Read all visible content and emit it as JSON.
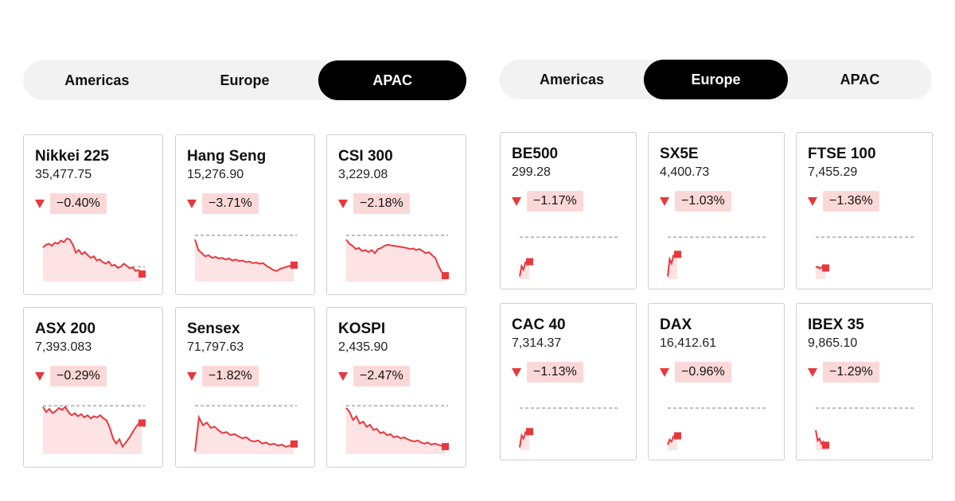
{
  "colors": {
    "down": "#e8383d",
    "badge": "#fbd8d8",
    "active_tab": "#000000",
    "tab_bg": "#f2f2f2"
  },
  "left": {
    "tabs": [
      {
        "label": "Americas",
        "active": false
      },
      {
        "label": "Europe",
        "active": false
      },
      {
        "label": "APAC",
        "active": true
      }
    ],
    "cards": [
      {
        "name": "Nikkei 225",
        "value": "35,477.75",
        "change": "−0.40%",
        "direction": "down",
        "icon": "down-triangle-icon",
        "spark": {
          "ref": 0.72,
          "points": [
            0.35,
            0.3,
            0.28,
            0.32,
            0.26,
            0.28,
            0.22,
            0.25,
            0.18,
            0.2,
            0.3,
            0.45,
            0.4,
            0.48,
            0.44,
            0.5,
            0.55,
            0.52,
            0.6,
            0.58,
            0.63,
            0.66,
            0.62,
            0.7,
            0.68,
            0.74,
            0.72,
            0.66,
            0.7,
            0.75,
            0.73,
            0.8,
            0.78,
            0.85
          ]
        }
      },
      {
        "name": "Hang Seng",
        "value": "15,276.90",
        "change": "−3.71%",
        "direction": "down",
        "icon": "down-triangle-icon",
        "spark": {
          "ref": 0.12,
          "points": [
            0.2,
            0.4,
            0.46,
            0.52,
            0.5,
            0.55,
            0.53,
            0.56,
            0.55,
            0.58,
            0.56,
            0.6,
            0.58,
            0.61,
            0.6,
            0.63,
            0.62,
            0.65,
            0.64,
            0.66,
            0.65,
            0.7,
            0.74,
            0.78,
            0.8,
            0.76,
            0.74,
            0.72,
            0.7,
            0.68
          ]
        }
      },
      {
        "name": "CSI 300",
        "value": "3,229.08",
        "change": "−2.18%",
        "direction": "down",
        "icon": "down-triangle-icon",
        "spark": {
          "ref": 0.12,
          "points": [
            0.2,
            0.28,
            0.32,
            0.38,
            0.36,
            0.42,
            0.4,
            0.44,
            0.4,
            0.46,
            0.38,
            0.36,
            0.32,
            0.3,
            0.31,
            0.32,
            0.33,
            0.34,
            0.35,
            0.36,
            0.38,
            0.37,
            0.4,
            0.38,
            0.42,
            0.46,
            0.44,
            0.5,
            0.55,
            0.7,
            0.82,
            0.88
          ]
        }
      },
      {
        "name": "ASX 200",
        "value": "7,393.083",
        "change": "−0.29%",
        "direction": "down",
        "icon": "down-triangle-icon",
        "spark": {
          "ref": 0.08,
          "points": [
            0.1,
            0.2,
            0.14,
            0.22,
            0.18,
            0.12,
            0.16,
            0.1,
            0.2,
            0.26,
            0.22,
            0.28,
            0.24,
            0.3,
            0.26,
            0.32,
            0.28,
            0.3,
            0.26,
            0.32,
            0.36,
            0.5,
            0.7,
            0.8,
            0.72,
            0.86,
            0.78,
            0.7,
            0.6,
            0.5,
            0.42,
            0.4
          ]
        }
      },
      {
        "name": "Sensex",
        "value": "71,797.63",
        "change": "−1.82%",
        "direction": "down",
        "icon": "down-triangle-icon",
        "spark": {
          "ref": 0.08,
          "points": [
            0.95,
            0.3,
            0.45,
            0.4,
            0.5,
            0.48,
            0.55,
            0.6,
            0.58,
            0.64,
            0.62,
            0.66,
            0.7,
            0.68,
            0.74,
            0.76,
            0.74,
            0.8,
            0.78,
            0.82,
            0.8,
            0.84,
            0.82,
            0.86,
            0.84,
            0.8
          ]
        }
      },
      {
        "name": "KOSPI",
        "value": "2,435.90",
        "change": "−2.47%",
        "direction": "down",
        "icon": "down-triangle-icon",
        "spark": {
          "ref": 0.08,
          "points": [
            0.12,
            0.2,
            0.35,
            0.28,
            0.42,
            0.38,
            0.48,
            0.44,
            0.54,
            0.52,
            0.6,
            0.58,
            0.64,
            0.62,
            0.68,
            0.66,
            0.7,
            0.68,
            0.72,
            0.74,
            0.76,
            0.74,
            0.78,
            0.8,
            0.78,
            0.82,
            0.8,
            0.82,
            0.84,
            0.85
          ]
        }
      }
    ]
  },
  "right": {
    "tabs": [
      {
        "label": "Americas",
        "active": false
      },
      {
        "label": "Europe",
        "active": true
      },
      {
        "label": "APAC",
        "active": false
      }
    ],
    "cards": [
      {
        "name": "BE500",
        "value": "299.28",
        "change": "−1.17%",
        "direction": "down",
        "icon": "down-triangle-icon",
        "spark": {
          "ref": 0.2,
          "points": [
            0.95,
            0.75,
            0.82,
            0.68,
            0.7,
            0.66
          ]
        }
      },
      {
        "name": "SX5E",
        "value": "4,400.73",
        "change": "−1.03%",
        "direction": "down",
        "icon": "down-triangle-icon",
        "spark": {
          "ref": 0.2,
          "points": [
            0.95,
            0.62,
            0.7,
            0.55,
            0.58,
            0.52
          ]
        }
      },
      {
        "name": "FTSE 100",
        "value": "7,455.29",
        "change": "−1.36%",
        "direction": "down",
        "icon": "down-triangle-icon",
        "spark": {
          "ref": 0.2,
          "points": [
            0.78,
            0.76,
            0.8,
            0.77,
            0.79,
            0.78
          ]
        }
      },
      {
        "name": "CAC 40",
        "value": "7,314.37",
        "change": "−1.13%",
        "direction": "down",
        "icon": "down-triangle-icon",
        "spark": {
          "ref": 0.2,
          "points": [
            0.95,
            0.72,
            0.78,
            0.66,
            0.7,
            0.64
          ]
        }
      },
      {
        "name": "DAX",
        "value": "16,412.61",
        "change": "−0.96%",
        "direction": "down",
        "icon": "down-triangle-icon",
        "spark": {
          "ref": 0.2,
          "points": [
            0.9,
            0.8,
            0.84,
            0.74,
            0.76,
            0.72
          ]
        }
      },
      {
        "name": "IBEX 35",
        "value": "9,865.10",
        "change": "−1.29%",
        "direction": "down",
        "icon": "down-triangle-icon",
        "spark": {
          "ref": 0.2,
          "points": [
            0.62,
            0.82,
            0.78,
            0.88,
            0.84,
            0.9
          ]
        }
      }
    ]
  }
}
